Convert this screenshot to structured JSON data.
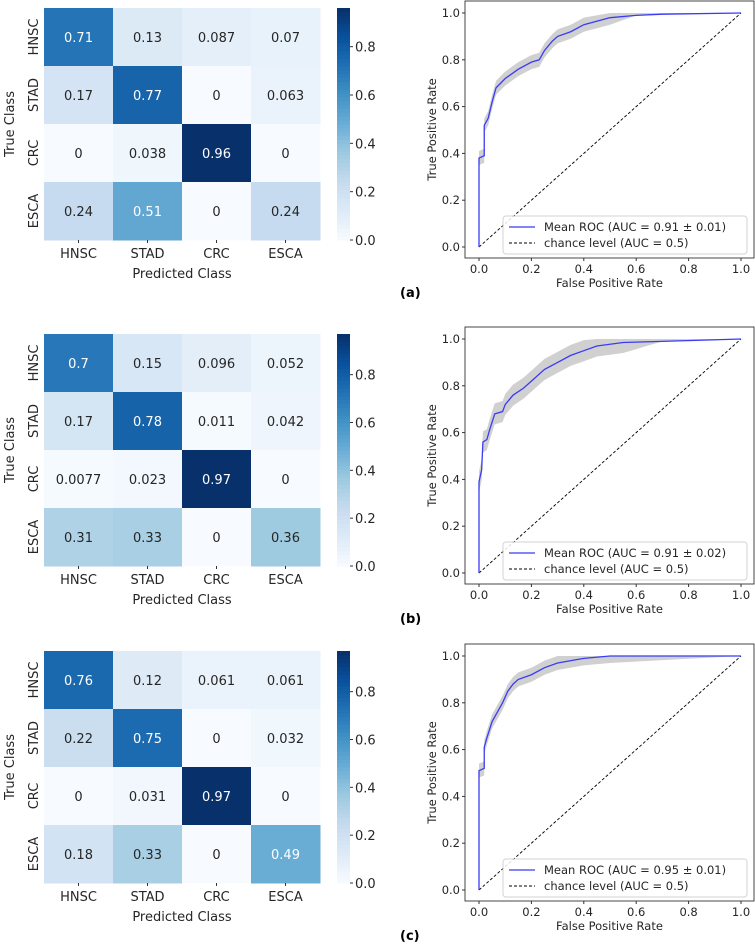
{
  "chart_data": [
    {
      "type": "heatmap",
      "panel_label": "(a)",
      "title": "",
      "xlabel": "Predicted Class",
      "ylabel": "True Class",
      "x_categories": [
        "HNSC",
        "STAD",
        "CRC",
        "ESCA"
      ],
      "y_categories": [
        "HNSC",
        "STAD",
        "CRC",
        "ESCA"
      ],
      "values": [
        [
          "0.71",
          "0.13",
          "0.087",
          "0.07"
        ],
        [
          "0.17",
          "0.77",
          "0",
          "0.063"
        ],
        [
          "0",
          "0.038",
          "0.96",
          "0"
        ],
        [
          "0.24",
          "0.51",
          "0",
          "0.24"
        ]
      ],
      "colorbar_ticks": [
        "0.0",
        "0.2",
        "0.4",
        "0.6",
        "0.8"
      ],
      "colormap": "Blues"
    },
    {
      "type": "line",
      "panel_label": "(a)",
      "xlabel": "False Positive Rate",
      "ylabel": "True Positive Rate",
      "xlim": [
        0,
        1
      ],
      "ylim": [
        0,
        1
      ],
      "x_ticks": [
        "0.0",
        "0.2",
        "0.4",
        "0.6",
        "0.8",
        "1.0"
      ],
      "y_ticks": [
        "0.0",
        "0.2",
        "0.4",
        "0.6",
        "0.8",
        "1.0"
      ],
      "legend_position": "lower-right",
      "series": [
        {
          "name": "Mean ROC (AUC = 0.91 ± 0.01)",
          "color": "#3b3bf5",
          "std_band": 0.03,
          "points": [
            [
              0,
              0
            ],
            [
              0,
              0.38
            ],
            [
              0.02,
              0.39
            ],
            [
              0.02,
              0.52
            ],
            [
              0.035,
              0.55
            ],
            [
              0.05,
              0.62
            ],
            [
              0.065,
              0.68
            ],
            [
              0.1,
              0.72
            ],
            [
              0.15,
              0.76
            ],
            [
              0.2,
              0.79
            ],
            [
              0.23,
              0.8
            ],
            [
              0.25,
              0.84
            ],
            [
              0.28,
              0.88
            ],
            [
              0.3,
              0.9
            ],
            [
              0.35,
              0.92
            ],
            [
              0.4,
              0.95
            ],
            [
              0.5,
              0.98
            ],
            [
              0.6,
              0.99
            ],
            [
              0.7,
              0.995
            ],
            [
              1,
              1
            ]
          ]
        },
        {
          "name": "chance level (AUC = 0.5)",
          "color": "#000000",
          "dashed": true,
          "points": [
            [
              0,
              0
            ],
            [
              1,
              1
            ]
          ]
        }
      ]
    },
    {
      "type": "heatmap",
      "panel_label": "(b)",
      "title": "",
      "xlabel": "Predicted Class",
      "ylabel": "True Class",
      "x_categories": [
        "HNSC",
        "STAD",
        "CRC",
        "ESCA"
      ],
      "y_categories": [
        "HNSC",
        "STAD",
        "CRC",
        "ESCA"
      ],
      "values": [
        [
          "0.7",
          "0.15",
          "0.096",
          "0.052"
        ],
        [
          "0.17",
          "0.78",
          "0.011",
          "0.042"
        ],
        [
          "0.0077",
          "0.023",
          "0.97",
          "0"
        ],
        [
          "0.31",
          "0.33",
          "0",
          "0.36"
        ]
      ],
      "colorbar_ticks": [
        "0.0",
        "0.2",
        "0.4",
        "0.6",
        "0.8"
      ],
      "colormap": "Blues"
    },
    {
      "type": "line",
      "panel_label": "(b)",
      "xlabel": "False Positive Rate",
      "ylabel": "True Positive Rate",
      "xlim": [
        0,
        1
      ],
      "ylim": [
        0,
        1
      ],
      "x_ticks": [
        "0.0",
        "0.2",
        "0.4",
        "0.6",
        "0.8",
        "1.0"
      ],
      "y_ticks": [
        "0.0",
        "0.2",
        "0.4",
        "0.6",
        "0.8",
        "1.0"
      ],
      "legend_position": "lower-right",
      "series": [
        {
          "name": "Mean ROC (AUC = 0.91 ± 0.02)",
          "color": "#3b3bf5",
          "std_band": 0.045,
          "points": [
            [
              0,
              0
            ],
            [
              0,
              0.39
            ],
            [
              0.01,
              0.44
            ],
            [
              0.015,
              0.56
            ],
            [
              0.03,
              0.57
            ],
            [
              0.04,
              0.61
            ],
            [
              0.06,
              0.68
            ],
            [
              0.09,
              0.69
            ],
            [
              0.1,
              0.72
            ],
            [
              0.13,
              0.76
            ],
            [
              0.17,
              0.79
            ],
            [
              0.2,
              0.82
            ],
            [
              0.25,
              0.87
            ],
            [
              0.3,
              0.9
            ],
            [
              0.35,
              0.93
            ],
            [
              0.4,
              0.95
            ],
            [
              0.45,
              0.97
            ],
            [
              0.55,
              0.985
            ],
            [
              0.7,
              0.99
            ],
            [
              1,
              1
            ]
          ]
        },
        {
          "name": "chance level (AUC = 0.5)",
          "color": "#000000",
          "dashed": true,
          "points": [
            [
              0,
              0
            ],
            [
              1,
              1
            ]
          ]
        }
      ]
    },
    {
      "type": "heatmap",
      "panel_label": "(c)",
      "title": "",
      "xlabel": "Predicted Class",
      "ylabel": "True Class",
      "x_categories": [
        "HNSC",
        "STAD",
        "CRC",
        "ESCA"
      ],
      "y_categories": [
        "HNSC",
        "STAD",
        "CRC",
        "ESCA"
      ],
      "values": [
        [
          "0.76",
          "0.12",
          "0.061",
          "0.061"
        ],
        [
          "0.22",
          "0.75",
          "0",
          "0.032"
        ],
        [
          "0",
          "0.031",
          "0.97",
          "0"
        ],
        [
          "0.18",
          "0.33",
          "0",
          "0.49"
        ]
      ],
      "colorbar_ticks": [
        "0.0",
        "0.2",
        "0.4",
        "0.6",
        "0.8"
      ],
      "colormap": "Blues"
    },
    {
      "type": "line",
      "panel_label": "(c)",
      "xlabel": "False Positive Rate",
      "ylabel": "True Positive Rate",
      "xlim": [
        0,
        1
      ],
      "ylim": [
        0,
        1
      ],
      "x_ticks": [
        "0.0",
        "0.2",
        "0.4",
        "0.6",
        "0.8",
        "1.0"
      ],
      "y_ticks": [
        "0.0",
        "0.2",
        "0.4",
        "0.6",
        "0.8",
        "1.0"
      ],
      "legend_position": "lower-right",
      "series": [
        {
          "name": "Mean ROC (AUC = 0.95 ± 0.01)",
          "color": "#3b3bf5",
          "std_band": 0.03,
          "points": [
            [
              0,
              0
            ],
            [
              0,
              0.51
            ],
            [
              0.02,
              0.52
            ],
            [
              0.02,
              0.61
            ],
            [
              0.03,
              0.65
            ],
            [
              0.05,
              0.72
            ],
            [
              0.07,
              0.76
            ],
            [
              0.09,
              0.8
            ],
            [
              0.11,
              0.85
            ],
            [
              0.13,
              0.88
            ],
            [
              0.15,
              0.9
            ],
            [
              0.2,
              0.92
            ],
            [
              0.25,
              0.95
            ],
            [
              0.3,
              0.97
            ],
            [
              0.4,
              0.99
            ],
            [
              0.5,
              1.0
            ],
            [
              1,
              1
            ]
          ]
        },
        {
          "name": "chance level (AUC = 0.5)",
          "color": "#000000",
          "dashed": true,
          "points": [
            [
              0,
              0
            ],
            [
              1,
              1
            ]
          ]
        }
      ]
    }
  ]
}
